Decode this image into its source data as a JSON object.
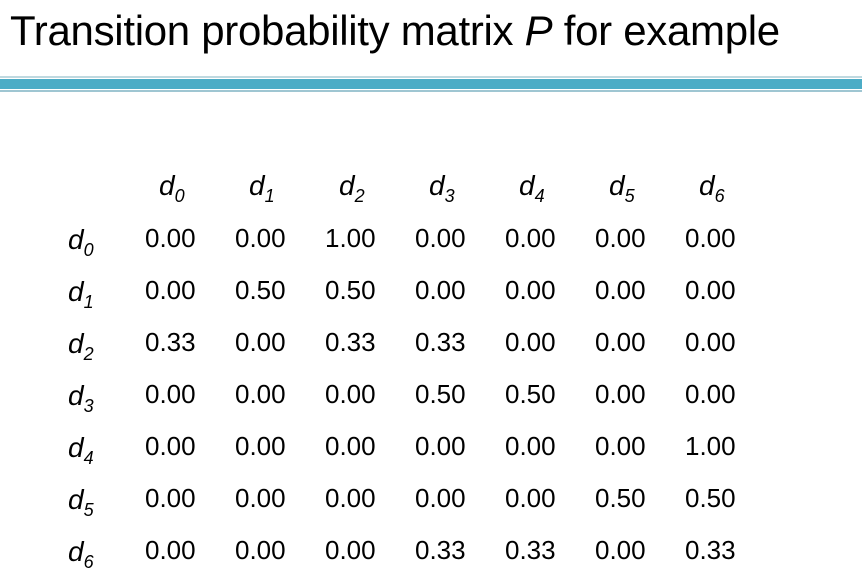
{
  "title": {
    "prefix": "Transition probability matrix ",
    "variable": "P",
    "suffix": " for example"
  },
  "matrix": {
    "state_letter": "d",
    "columns": [
      "0",
      "1",
      "2",
      "3",
      "4",
      "5",
      "6"
    ],
    "rows": [
      {
        "label": "0",
        "values": [
          "0.00",
          "0.00",
          "1.00",
          "0.00",
          "0.00",
          "0.00",
          "0.00"
        ]
      },
      {
        "label": "1",
        "values": [
          "0.00",
          "0.50",
          "0.50",
          "0.00",
          "0.00",
          "0.00",
          "0.00"
        ]
      },
      {
        "label": "2",
        "values": [
          "0.33",
          "0.00",
          "0.33",
          "0.33",
          "0.00",
          "0.00",
          "0.00"
        ]
      },
      {
        "label": "3",
        "values": [
          "0.00",
          "0.00",
          "0.00",
          "0.50",
          "0.50",
          "0.00",
          "0.00"
        ]
      },
      {
        "label": "4",
        "values": [
          "0.00",
          "0.00",
          "0.00",
          "0.00",
          "0.00",
          "0.00",
          "1.00"
        ]
      },
      {
        "label": "5",
        "values": [
          "0.00",
          "0.00",
          "0.00",
          "0.00",
          "0.00",
          "0.50",
          "0.50"
        ]
      },
      {
        "label": "6",
        "values": [
          "0.00",
          "0.00",
          "0.00",
          "0.33",
          "0.33",
          "0.00",
          "0.33"
        ]
      }
    ]
  },
  "colors": {
    "rule_bar": "#4bacc6",
    "text": "#000000"
  }
}
